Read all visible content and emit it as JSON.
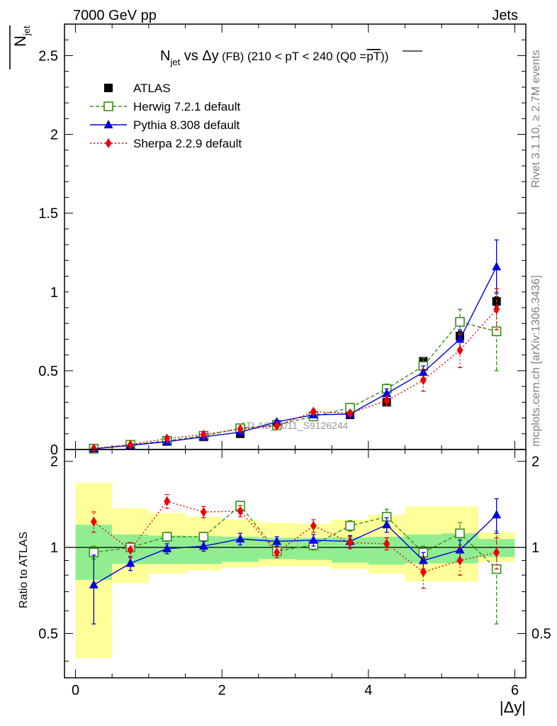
{
  "header": {
    "energy_label": "7000 GeV pp",
    "process_label": "Jets"
  },
  "side_labels": {
    "rivet": "Rivet 3.1.10, ≥ 2.7M events",
    "mcplots": "mcplots.cern.ch [arXiv:1306.3436]"
  },
  "watermark": "ATLAS_2011_S9126244",
  "chart_data": [
    {
      "type": "scatter",
      "panel": "main",
      "title_parts": {
        "main": "N",
        "sub": "jet",
        "vs": " vs Δy",
        "small": " (FB)",
        "cuts": " (210 < pT < 240 (Q0 =",
        "overline": "pT",
        "close": "))"
      },
      "ylabel": {
        "main": "N",
        "sub": "jet"
      },
      "xlabel": "|Δy|",
      "xlim": [
        -0.15,
        6.15
      ],
      "ylim": [
        0,
        2.7
      ],
      "xticks": [
        0,
        2,
        4,
        6
      ],
      "xtick_labels": [
        "0",
        "2",
        "4",
        "6"
      ],
      "yticks": [
        0,
        0.5,
        1,
        1.5,
        2,
        2.5
      ],
      "ytick_labels": [
        "0",
        "0.5",
        "1",
        "1.5",
        "2",
        "2.5"
      ],
      "x": [
        0.25,
        0.75,
        1.25,
        1.75,
        2.25,
        2.75,
        3.25,
        3.75,
        4.25,
        4.75,
        5.25,
        5.75
      ],
      "legend_position": "top-left",
      "series": [
        {
          "name": "ATLAS",
          "color": "#000000",
          "marker": "square",
          "values": [
            0.005,
            0.03,
            0.05,
            0.08,
            0.1,
            0.16,
            0.21,
            0.22,
            0.3,
            0.56,
            0.72,
            0.94
          ],
          "errors": [
            0,
            0,
            0,
            0,
            0,
            0,
            0,
            0,
            0.02,
            0.02,
            0.03,
            0.03
          ]
        },
        {
          "name": "Herwig 7.2.1 default",
          "color": "#3a8a1a",
          "marker": "open-square",
          "line": "dashed",
          "values": [
            0.005,
            0.03,
            0.055,
            0.087,
            0.135,
            0.155,
            0.21,
            0.265,
            0.385,
            0.53,
            0.81,
            0.75
          ],
          "errors": [
            0,
            0,
            0,
            0,
            0.01,
            0.01,
            0.01,
            0.015,
            0.03,
            0.05,
            0.08,
            0.25
          ]
        },
        {
          "name": "Pythia 8.308 default",
          "color": "#0000dd",
          "marker": "triangle",
          "line": "solid",
          "values": [
            0.004,
            0.026,
            0.05,
            0.08,
            0.11,
            0.175,
            0.22,
            0.225,
            0.355,
            0.49,
            0.7,
            1.16
          ],
          "errors": [
            0,
            0,
            0,
            0,
            0.005,
            0.01,
            0.01,
            0.01,
            0.03,
            0.04,
            0.06,
            0.17
          ]
        },
        {
          "name": "Sherpa 2.2.9 default",
          "color": "#ee0000",
          "marker": "diamond",
          "line": "dotted",
          "values": [
            0.007,
            0.03,
            0.07,
            0.095,
            0.13,
            0.15,
            0.24,
            0.23,
            0.31,
            0.44,
            0.63,
            0.89
          ],
          "errors": [
            0,
            0,
            0.005,
            0.005,
            0.01,
            0.01,
            0.015,
            0.015,
            0.03,
            0.07,
            0.11,
            0.13
          ]
        }
      ]
    },
    {
      "type": "scatter",
      "panel": "ratio",
      "ylabel": "Ratio to ATLAS",
      "xlim": [
        -0.15,
        6.15
      ],
      "ylim": [
        0.35,
        2.2
      ],
      "yticks": [
        0.5,
        1,
        2
      ],
      "ytick_labels": [
        "0.5",
        "1",
        "2"
      ],
      "x": [
        0.25,
        0.75,
        1.25,
        1.75,
        2.25,
        2.75,
        3.25,
        3.75,
        4.25,
        4.75,
        5.25,
        5.75
      ],
      "bin_edges": [
        0,
        0.5,
        1,
        1.5,
        2,
        2.5,
        3,
        3.5,
        4,
        4.5,
        5,
        5.5,
        6
      ],
      "band_inner": {
        "color": "#90ee90",
        "low": [
          0.77,
          0.875,
          0.875,
          0.875,
          0.89,
          0.91,
          0.905,
          0.885,
          0.87,
          0.88,
          0.88,
          0.925
        ],
        "high": [
          1.2,
          1.11,
          1.1,
          1.095,
          1.09,
          1.08,
          1.08,
          1.085,
          1.09,
          1.11,
          1.12,
          1.07
        ]
      },
      "band_outer": {
        "color": "#ffff99",
        "low": [
          0.41,
          0.75,
          0.81,
          0.83,
          0.85,
          0.86,
          0.86,
          0.84,
          0.81,
          0.76,
          0.76,
          0.89
        ],
        "high": [
          1.68,
          1.37,
          1.32,
          1.28,
          1.25,
          1.22,
          1.21,
          1.25,
          1.3,
          1.39,
          1.39,
          1.13
        ]
      },
      "series": [
        {
          "name": "Herwig 7.2.1 default",
          "color": "#3a8a1a",
          "marker": "open-square",
          "line": "dashed",
          "values": [
            0.96,
            1.0,
            1.09,
            1.09,
            1.4,
            0.97,
            1.02,
            1.19,
            1.28,
            0.96,
            1.12,
            0.84
          ],
          "errors": [
            0.05,
            0.03,
            0.04,
            0.04,
            0.05,
            0.03,
            0.04,
            0.05,
            0.08,
            0.05,
            0.1,
            0.3
          ]
        },
        {
          "name": "Pythia 8.308 default",
          "color": "#0000dd",
          "marker": "triangle",
          "line": "solid",
          "values": [
            0.74,
            0.88,
            0.99,
            1.01,
            1.07,
            1.05,
            1.06,
            1.05,
            1.2,
            0.9,
            0.98,
            1.3
          ],
          "errors": [
            0.2,
            0.05,
            0.04,
            0.04,
            0.05,
            0.04,
            0.05,
            0.05,
            0.07,
            0.06,
            0.08,
            0.18
          ]
        },
        {
          "name": "Sherpa 2.2.9 default",
          "color": "#ee0000",
          "marker": "diamond",
          "line": "dotted",
          "values": [
            1.23,
            0.98,
            1.45,
            1.33,
            1.34,
            0.96,
            1.19,
            1.04,
            1.03,
            0.82,
            0.9,
            0.96
          ],
          "errors": [
            0.1,
            0.06,
            0.08,
            0.06,
            0.06,
            0.04,
            0.06,
            0.05,
            0.05,
            0.1,
            0.1,
            0.12
          ]
        }
      ]
    }
  ]
}
